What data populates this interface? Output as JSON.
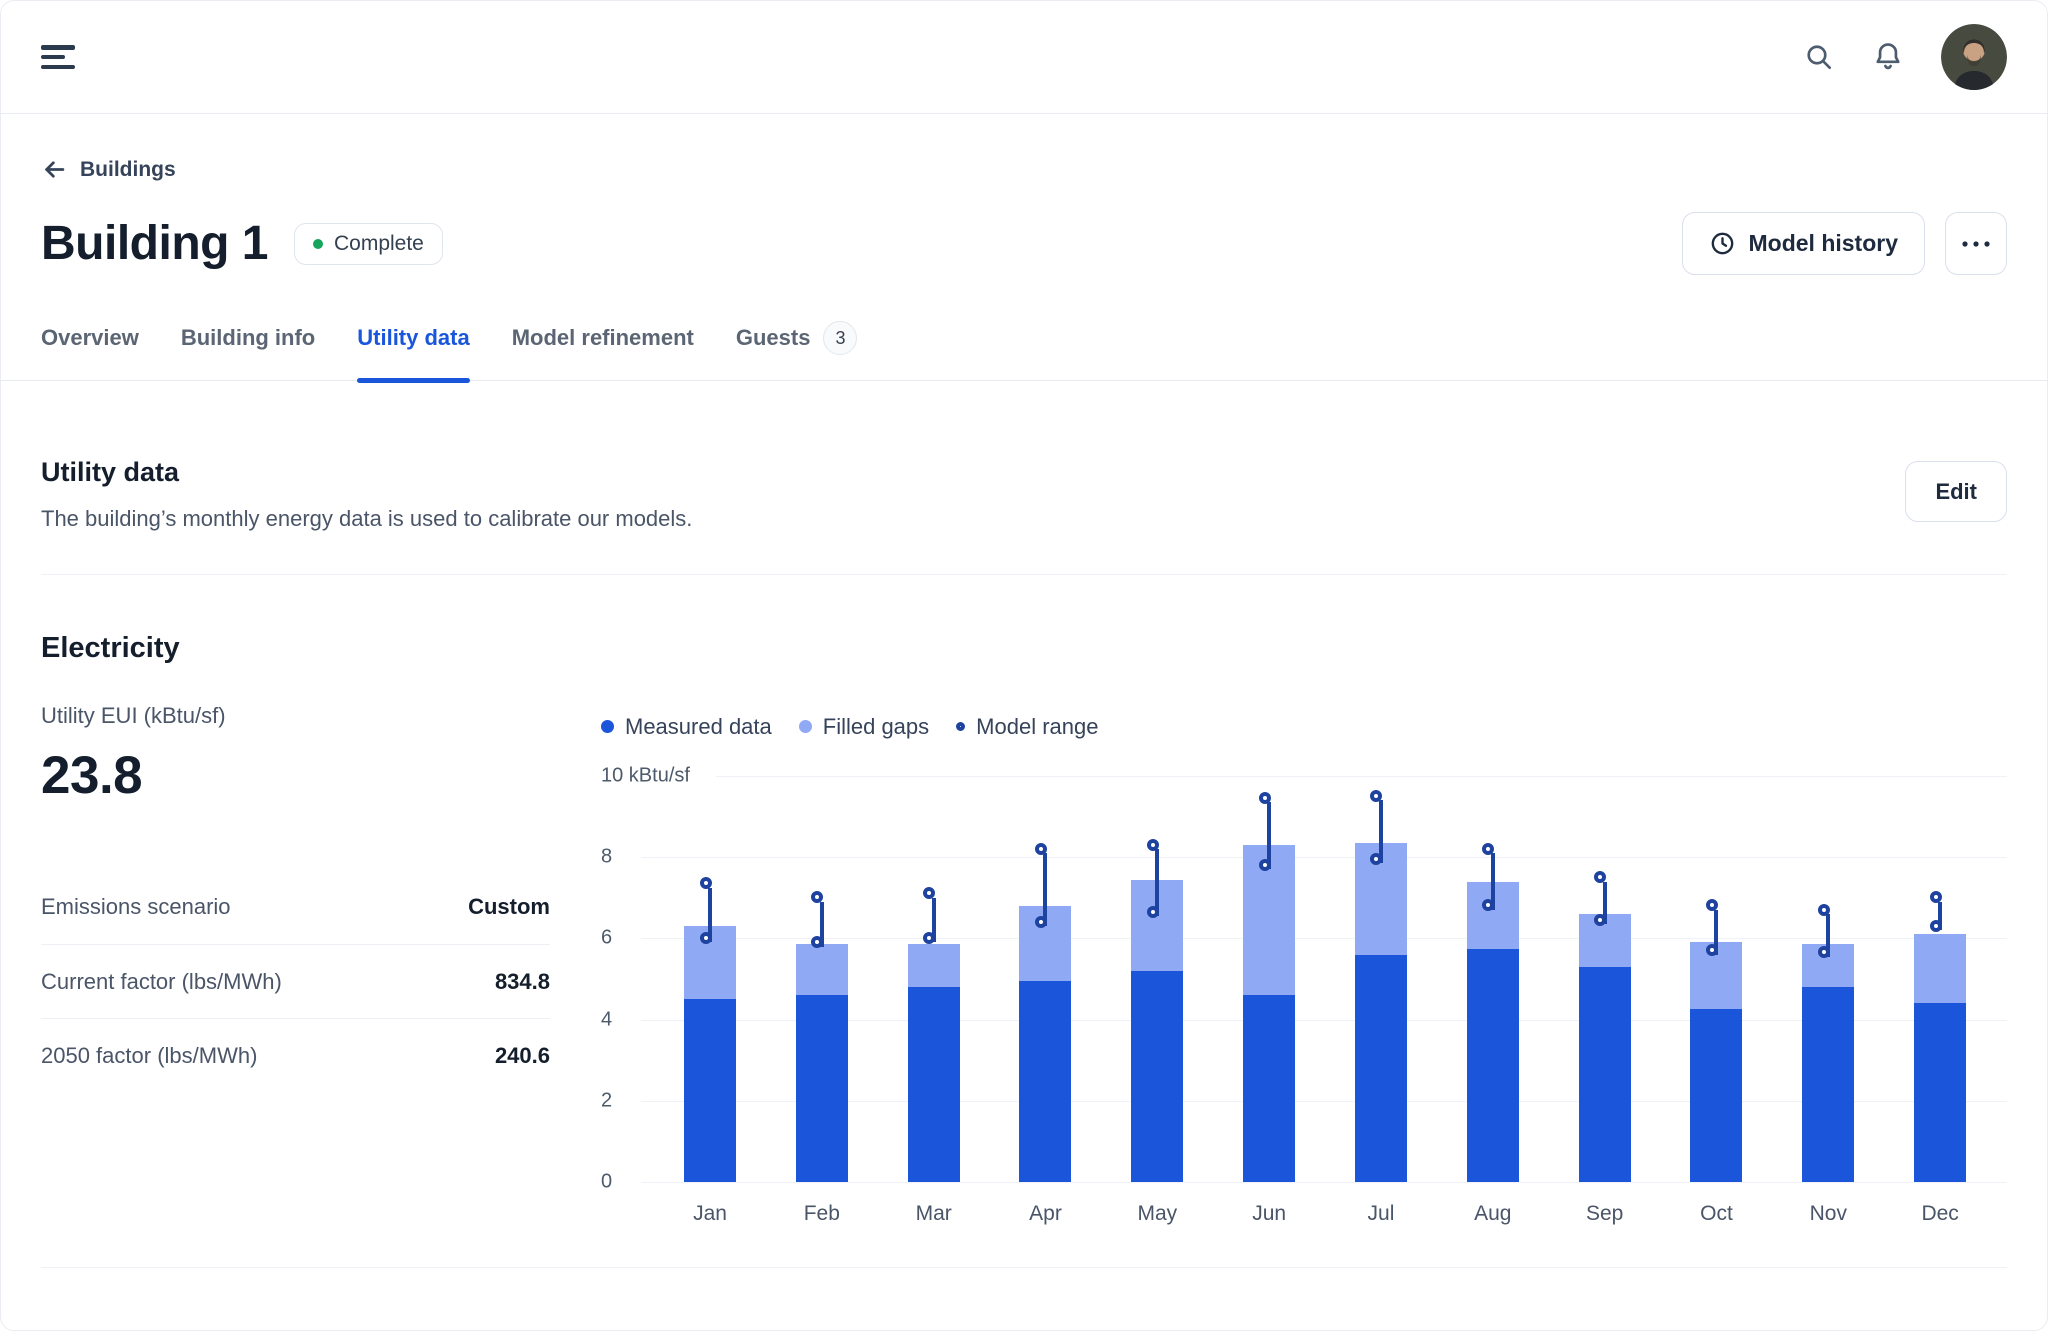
{
  "header": {
    "icons": {
      "menu": "hamburger",
      "search": "magnifier",
      "notifications": "bell",
      "avatar": "user-photo"
    }
  },
  "page": {
    "breadcrumb": "Buildings",
    "title": "Building 1",
    "status_badge": "Complete",
    "status_color": "#17a45c",
    "model_history_button": "Model history",
    "more_button": "more-options"
  },
  "tabs": [
    {
      "label": "Overview",
      "active": false
    },
    {
      "label": "Building info",
      "active": false
    },
    {
      "label": "Utility data",
      "active": true
    },
    {
      "label": "Model refinement",
      "active": false
    },
    {
      "label": "Guests",
      "active": false,
      "badge": "3"
    }
  ],
  "accent_color": "#1a56db",
  "section": {
    "title": "Utility data",
    "description": "The building’s monthly energy data is used to calibrate our models.",
    "edit_button": "Edit"
  },
  "electricity": {
    "title": "Electricity",
    "eui_label": "Utility EUI (kBtu/sf)",
    "eui_value": "23.8",
    "rows": [
      {
        "label": "Emissions scenario",
        "value": "Custom"
      },
      {
        "label": "Current factor (lbs/MWh)",
        "value": "834.8"
      },
      {
        "label": "2050 factor (lbs/MWh)",
        "value": "240.6"
      }
    ]
  },
  "chart_data": {
    "type": "bar",
    "subtype": "stacked-with-range-markers",
    "title": "",
    "unit_top_label": "10 kBtu/sf",
    "categories": [
      "Jan",
      "Feb",
      "Mar",
      "Apr",
      "May",
      "Jun",
      "Jul",
      "Aug",
      "Sep",
      "Oct",
      "Nov",
      "Dec"
    ],
    "ylim": [
      0,
      10
    ],
    "yticks": [
      0,
      2,
      4,
      6,
      8
    ],
    "grid": true,
    "legend_position": "top",
    "series": [
      {
        "name": "Measured data",
        "type": "bar",
        "color": "#1b55d9",
        "values": [
          4.5,
          4.6,
          4.8,
          4.95,
          5.2,
          4.6,
          5.6,
          5.75,
          5.3,
          4.25,
          4.8,
          4.4
        ]
      },
      {
        "name": "Filled gaps",
        "type": "bar",
        "color": "#8fa9f4",
        "values": [
          1.8,
          1.25,
          1.05,
          1.85,
          2.25,
          3.7,
          2.75,
          1.65,
          1.3,
          1.65,
          1.05,
          1.7
        ]
      },
      {
        "name": "Model range",
        "type": "range",
        "color": "#1e429f",
        "low": [
          5.9,
          5.8,
          5.9,
          6.3,
          6.55,
          7.7,
          7.85,
          6.7,
          6.35,
          5.6,
          5.55,
          6.2
        ],
        "high": [
          7.25,
          6.9,
          7.0,
          8.1,
          8.2,
          9.35,
          9.4,
          8.1,
          7.4,
          6.7,
          6.6,
          6.9
        ]
      }
    ]
  }
}
